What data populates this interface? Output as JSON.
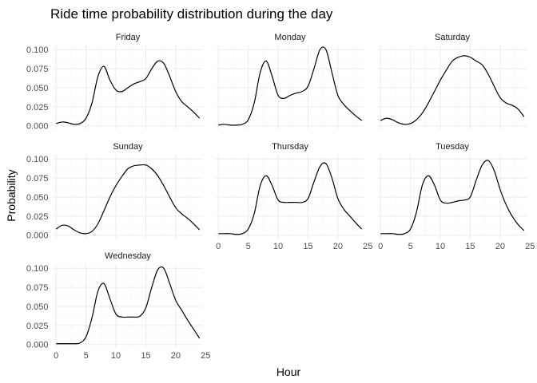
{
  "chart_data": {
    "type": "line",
    "title": "Ride time probability distribution during the day",
    "xlabel": "Hour",
    "ylabel": "Probability",
    "xlim": [
      0,
      24
    ],
    "ylim": [
      0,
      0.105
    ],
    "x_ticks": [
      0,
      5,
      10,
      15,
      20,
      25
    ],
    "y_ticks": [
      0,
      0.025,
      0.05,
      0.075,
      0.1
    ],
    "x_tick_labels": [
      "0",
      "5",
      "10",
      "15",
      "20",
      "25"
    ],
    "y_tick_labels": [
      "0.000",
      "0.025",
      "0.050",
      "0.075",
      "0.100"
    ],
    "grid": true,
    "line_color": "#000000",
    "facets": [
      {
        "name": "Friday",
        "x": [
          0,
          1,
          2,
          3,
          4,
          5,
          6,
          7,
          8,
          9,
          10,
          11,
          12,
          13,
          14,
          15,
          16,
          17,
          18,
          19,
          20,
          21,
          22,
          23,
          24
        ],
        "y": [
          0.003,
          0.005,
          0.004,
          0.002,
          0.003,
          0.01,
          0.03,
          0.065,
          0.078,
          0.06,
          0.047,
          0.045,
          0.05,
          0.055,
          0.058,
          0.062,
          0.075,
          0.085,
          0.082,
          0.065,
          0.045,
          0.032,
          0.025,
          0.018,
          0.01
        ]
      },
      {
        "name": "Monday",
        "x": [
          0,
          1,
          2,
          3,
          4,
          5,
          6,
          7,
          8,
          9,
          10,
          11,
          12,
          13,
          14,
          15,
          16,
          17,
          18,
          19,
          20,
          21,
          22,
          23,
          24
        ],
        "y": [
          0.001,
          0.002,
          0.001,
          0.001,
          0.002,
          0.008,
          0.03,
          0.07,
          0.085,
          0.065,
          0.04,
          0.036,
          0.04,
          0.043,
          0.045,
          0.052,
          0.075,
          0.1,
          0.1,
          0.07,
          0.04,
          0.028,
          0.02,
          0.013,
          0.007
        ]
      },
      {
        "name": "Saturday",
        "x": [
          0,
          1,
          2,
          3,
          4,
          5,
          6,
          7,
          8,
          9,
          10,
          11,
          12,
          13,
          14,
          15,
          16,
          17,
          18,
          19,
          20,
          21,
          22,
          23,
          24
        ],
        "y": [
          0.007,
          0.01,
          0.008,
          0.004,
          0.002,
          0.003,
          0.008,
          0.017,
          0.03,
          0.045,
          0.06,
          0.073,
          0.085,
          0.09,
          0.092,
          0.09,
          0.085,
          0.08,
          0.068,
          0.052,
          0.037,
          0.03,
          0.027,
          0.022,
          0.012
        ]
      },
      {
        "name": "Sunday",
        "x": [
          0,
          1,
          2,
          3,
          4,
          5,
          6,
          7,
          8,
          9,
          10,
          11,
          12,
          13,
          14,
          15,
          16,
          17,
          18,
          19,
          20,
          21,
          22,
          23,
          24
        ],
        "y": [
          0.008,
          0.013,
          0.012,
          0.007,
          0.003,
          0.002,
          0.005,
          0.015,
          0.032,
          0.05,
          0.065,
          0.077,
          0.087,
          0.091,
          0.092,
          0.092,
          0.087,
          0.078,
          0.065,
          0.05,
          0.036,
          0.028,
          0.022,
          0.015,
          0.007
        ]
      },
      {
        "name": "Thursday",
        "x": [
          0,
          1,
          2,
          3,
          4,
          5,
          6,
          7,
          8,
          9,
          10,
          11,
          12,
          13,
          14,
          15,
          16,
          17,
          18,
          19,
          20,
          21,
          22,
          23,
          24
        ],
        "y": [
          0.002,
          0.002,
          0.002,
          0.001,
          0.002,
          0.008,
          0.028,
          0.065,
          0.078,
          0.065,
          0.046,
          0.043,
          0.043,
          0.043,
          0.043,
          0.048,
          0.07,
          0.09,
          0.094,
          0.075,
          0.048,
          0.034,
          0.025,
          0.016,
          0.008
        ]
      },
      {
        "name": "Tuesday",
        "x": [
          0,
          1,
          2,
          3,
          4,
          5,
          6,
          7,
          8,
          9,
          10,
          11,
          12,
          13,
          14,
          15,
          16,
          17,
          18,
          19,
          20,
          21,
          22,
          23,
          24
        ],
        "y": [
          0.002,
          0.002,
          0.002,
          0.001,
          0.002,
          0.008,
          0.03,
          0.066,
          0.078,
          0.066,
          0.046,
          0.042,
          0.043,
          0.045,
          0.046,
          0.05,
          0.072,
          0.092,
          0.098,
          0.085,
          0.06,
          0.04,
          0.025,
          0.014,
          0.006
        ]
      },
      {
        "name": "Wednesday",
        "x": [
          0,
          1,
          2,
          3,
          4,
          5,
          6,
          7,
          8,
          9,
          10,
          11,
          12,
          13,
          14,
          15,
          16,
          17,
          18,
          19,
          20,
          21,
          22,
          23,
          24
        ],
        "y": [
          0.001,
          0.001,
          0.001,
          0.001,
          0.002,
          0.01,
          0.035,
          0.07,
          0.08,
          0.06,
          0.04,
          0.036,
          0.036,
          0.036,
          0.037,
          0.048,
          0.075,
          0.098,
          0.1,
          0.08,
          0.058,
          0.045,
          0.032,
          0.02,
          0.008
        ]
      }
    ]
  }
}
